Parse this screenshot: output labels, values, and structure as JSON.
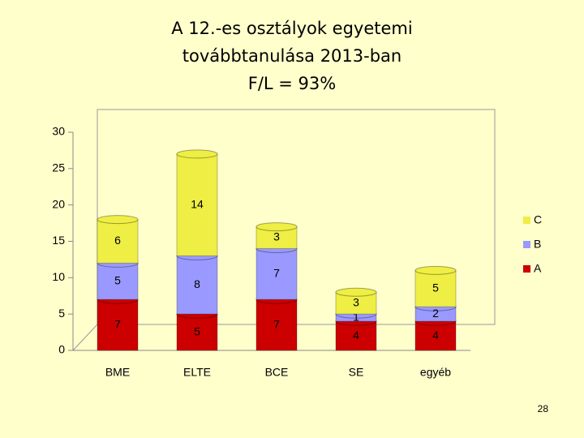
{
  "chart_data": {
    "type": "bar",
    "stacked": true,
    "title": [
      "A 12.-es osztályok egyetemi",
      "továbbtanulása 2013-ban",
      "F/L = 93%"
    ],
    "categories": [
      "BME",
      "ELTE",
      "BCE",
      "SE",
      "egyéb"
    ],
    "series": [
      {
        "name": "A",
        "color": "#cc0000",
        "values": [
          7,
          5,
          7,
          4,
          4
        ]
      },
      {
        "name": "B",
        "color": "#9999ff",
        "values": [
          5,
          8,
          7,
          1,
          2
        ]
      },
      {
        "name": "C",
        "color": "#eeee44",
        "values": [
          6,
          14,
          3,
          3,
          5
        ]
      }
    ],
    "ylim": [
      0,
      30
    ],
    "yticks": [
      0,
      5,
      10,
      15,
      20,
      25,
      30
    ],
    "legend": "right",
    "page_number": "28"
  }
}
